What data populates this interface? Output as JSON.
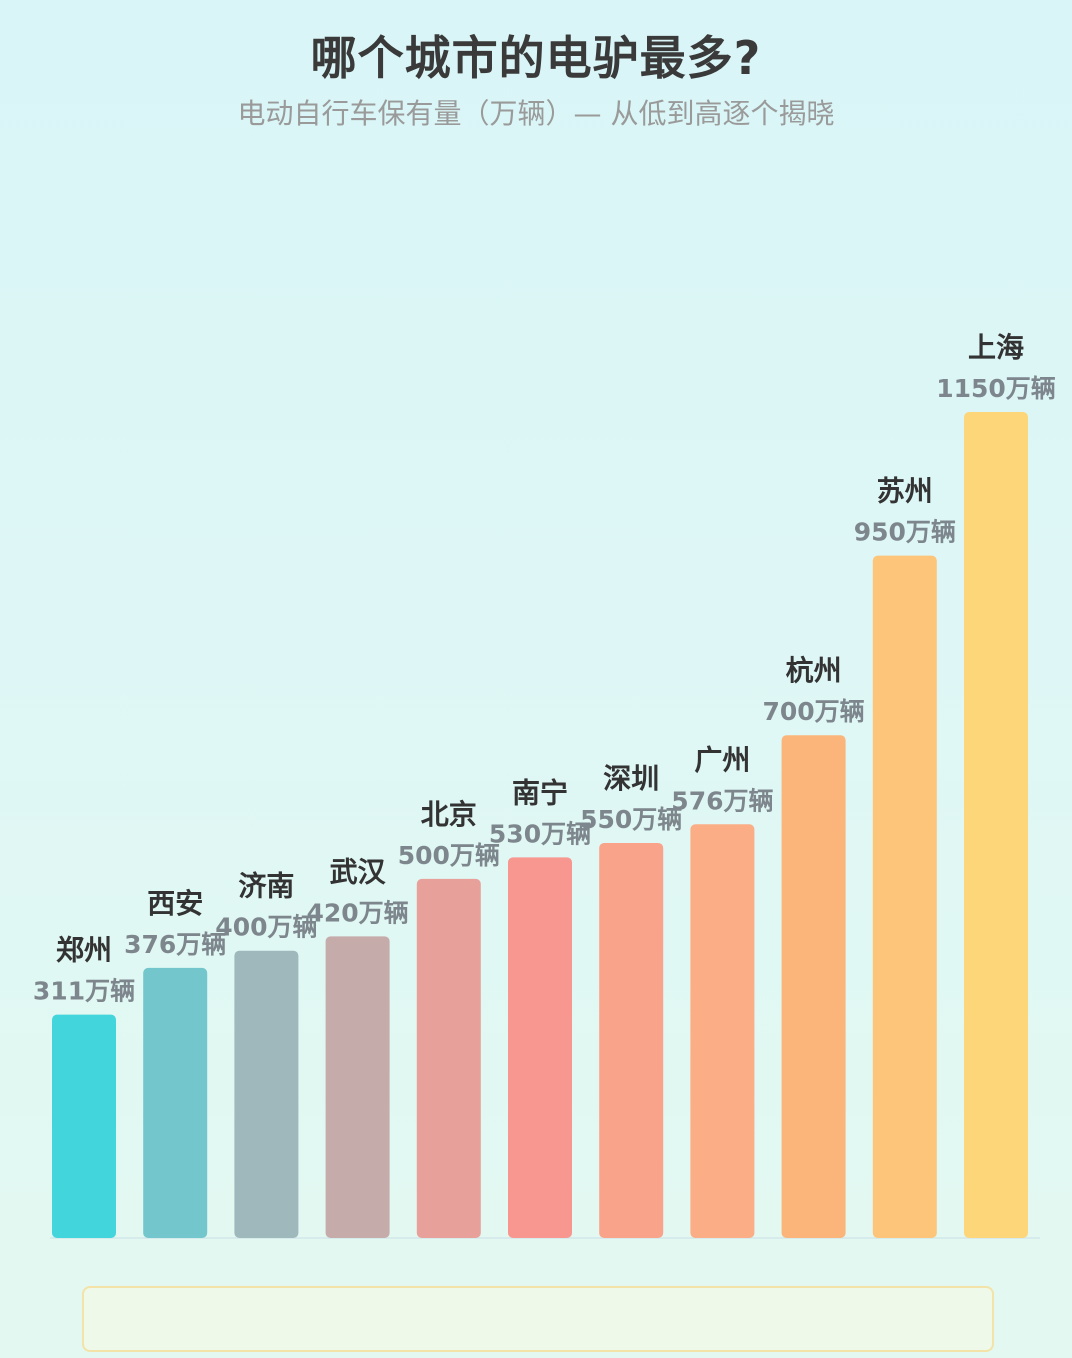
{
  "header": {
    "title": "哪个城市的电驴最多?",
    "subtitle": "电动自行车保有量（万辆）— 从低到高逐个揭晓"
  },
  "chart_data": {
    "type": "bar",
    "title": "哪个城市的电驴最多?",
    "subtitle": "电动自行车保有量（万辆）— 从低到高逐个揭晓",
    "categories": [
      "郑州",
      "西安",
      "济南",
      "武汉",
      "北京",
      "南宁",
      "深圳",
      "广州",
      "杭州",
      "苏州",
      "上海"
    ],
    "values": [
      311,
      376,
      400,
      420,
      500,
      530,
      550,
      576,
      700,
      950,
      1150
    ],
    "value_labels": [
      "311万辆",
      "376万辆",
      "400万辆",
      "420万辆",
      "500万辆",
      "530万辆",
      "550万辆",
      "576万辆",
      "700万辆",
      "950万辆",
      "1150万辆"
    ],
    "unit": "万辆",
    "xlabel": "",
    "ylabel": "",
    "ylim": [
      0,
      1150
    ],
    "grid": false,
    "legend": "none",
    "colors": [
      "#42d6dc",
      "#72c6cc",
      "#9fb8bc",
      "#c6abab",
      "#e8a09a",
      "#f79790",
      "#f8a38a",
      "#fbad86",
      "#fbb57a",
      "#fcc57a",
      "#fdd67a"
    ]
  }
}
